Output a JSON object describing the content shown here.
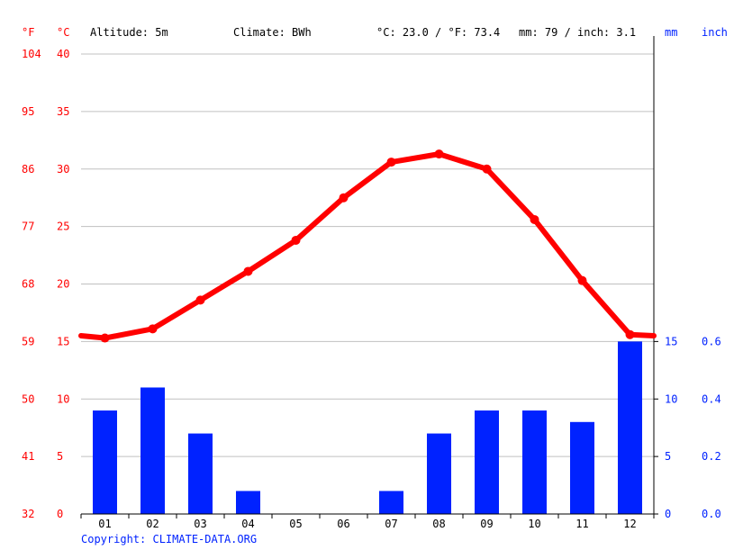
{
  "header": {
    "unit_f": "°F",
    "unit_c": "°C",
    "altitude": "Altitude: 5m",
    "climate": "Climate: BWh",
    "avg_temp": "°C: 23.0 / °F: 73.4",
    "avg_precip": "mm: 79 / inch: 3.1",
    "unit_mm": "mm",
    "unit_inch": "inch"
  },
  "copyright": "Copyright: CLIMATE-DATA.ORG",
  "colors": {
    "temperature": "#ff0000",
    "precipitation": "#0022ff",
    "grid": "#c0c0c0",
    "axis": "#000000"
  },
  "chart_data": {
    "type": "bar+line",
    "categories": [
      "01",
      "02",
      "03",
      "04",
      "05",
      "06",
      "07",
      "08",
      "09",
      "10",
      "11",
      "12"
    ],
    "series": [
      {
        "type": "bar",
        "axis": "right",
        "values": [
          9,
          11,
          7,
          2,
          0,
          0,
          2,
          7,
          9,
          9,
          8,
          15
        ]
      },
      {
        "type": "line",
        "axis": "left",
        "values": [
          15.3,
          16.1,
          18.6,
          21.1,
          23.8,
          27.5,
          30.6,
          31.3,
          30.0,
          25.6,
          20.3,
          15.6
        ],
        "edge_values": [
          15.5,
          15.5
        ]
      }
    ],
    "temp_axis": {
      "ylim": [
        0,
        40
      ],
      "ticks_c": [
        40,
        35,
        30,
        25,
        20,
        15,
        10,
        5,
        0
      ],
      "ticks_f": [
        104,
        95,
        86,
        77,
        68,
        59,
        50,
        41,
        32
      ]
    },
    "precip_axis": {
      "ylim": [
        0,
        40
      ],
      "ticks_mm": [
        15,
        10,
        5,
        0
      ],
      "ticks_inch": [
        "0.6",
        "0.4",
        "0.2",
        "0.0"
      ]
    },
    "grid": true
  }
}
